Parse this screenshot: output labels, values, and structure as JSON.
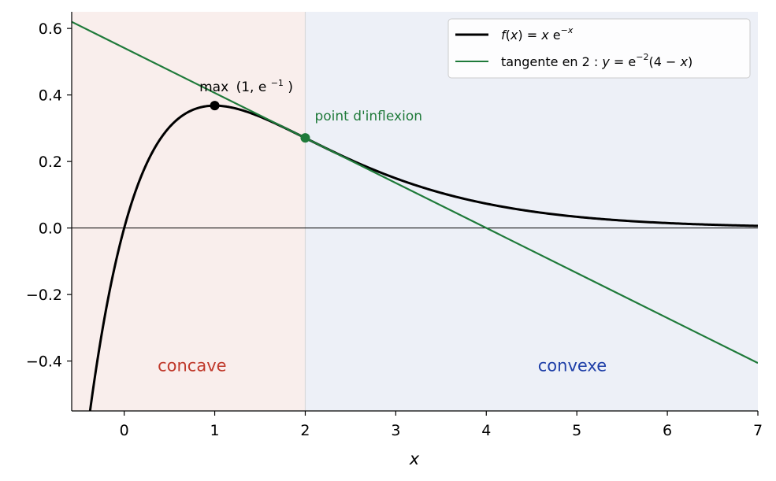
{
  "chart_data": {
    "type": "line",
    "xlabel": "x",
    "xlim": [
      -0.58,
      7
    ],
    "ylim": [
      -0.55,
      0.65
    ],
    "x_ticks": [
      0,
      1,
      2,
      3,
      4,
      5,
      6,
      7
    ],
    "x_tick_labels": [
      "0",
      "1",
      "2",
      "3",
      "4",
      "5",
      "6",
      "7"
    ],
    "y_ticks": [
      0.6,
      0.4,
      0.2,
      0.0,
      -0.2,
      -0.4
    ],
    "y_tick_labels": [
      "0.6",
      "0.4",
      "0.2",
      "0.0",
      "−0.2",
      "−0.4"
    ],
    "grid": false,
    "legend_position": "top-right",
    "series": [
      {
        "name": "f(x) = x e^{−x}",
        "color": "#000000",
        "x": [
          -0.5,
          -0.4,
          -0.3,
          -0.2,
          -0.1,
          0,
          0.25,
          0.5,
          0.75,
          1,
          1.25,
          1.5,
          1.75,
          2,
          2.5,
          3,
          3.5,
          4,
          4.5,
          5,
          5.5,
          6,
          6.5,
          7
        ],
        "y": [
          -0.824,
          -0.597,
          -0.405,
          -0.244,
          -0.111,
          0,
          0.195,
          0.303,
          0.354,
          0.368,
          0.358,
          0.335,
          0.304,
          0.271,
          0.205,
          0.149,
          0.106,
          0.073,
          0.05,
          0.034,
          0.022,
          0.015,
          0.01,
          0.006
        ]
      },
      {
        "name": "tangente en 2 : y = e^{−2}(4 − x)",
        "color": "#1f7a3a",
        "x": [
          -0.58,
          7
        ],
        "y": [
          0.62,
          -0.406
        ]
      }
    ],
    "regions": [
      {
        "label": "concave",
        "x_start": -0.58,
        "x_end": 2,
        "fill": "#f9eeec",
        "label_color": "#c0392b",
        "label_x": 0.75,
        "label_y": -0.43
      },
      {
        "label": "convexe",
        "x_start": 2,
        "x_end": 7,
        "fill": "#edf0f7",
        "label_color": "#1f3fa8",
        "label_x": 4.95,
        "label_y": -0.43
      }
    ],
    "points": [
      {
        "name": "maximum",
        "x": 1,
        "y": 0.368,
        "color": "#000000",
        "label": "max",
        "label_suffix": "(1, e",
        "label_exp": "−1",
        "label_close": ")"
      },
      {
        "name": "inflection",
        "x": 2,
        "y": 0.271,
        "color": "#1f7a3a",
        "label": "point d'inflexion"
      }
    ]
  }
}
